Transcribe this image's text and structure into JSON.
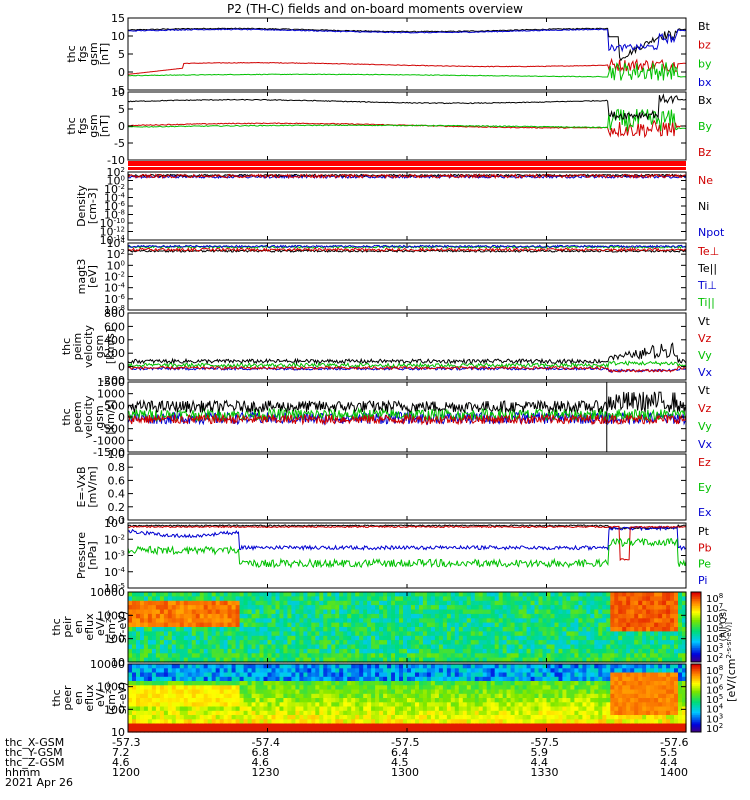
{
  "title": "P2 (TH-C) fields and on-board moments overview",
  "panels": [
    {
      "id": "fgs_bt",
      "ylabel": [
        "thc",
        "fgs",
        "gsm",
        "[nT]"
      ],
      "yticks": [
        "15",
        "10",
        "5",
        "0",
        "-5"
      ],
      "legend": [
        {
          "t": "Bt",
          "c": "#000000"
        },
        {
          "t": "bz",
          "c": "#d00000"
        },
        {
          "t": "by",
          "c": "#00c000"
        },
        {
          "t": "bx",
          "c": "#0000d0"
        }
      ]
    },
    {
      "id": "fgs_b",
      "ylabel": [
        "thc",
        "fgs",
        "gsm",
        "[nT]"
      ],
      "yticks": [
        "10",
        "5",
        "0",
        "-5",
        "-10"
      ],
      "legend": [
        {
          "t": "Bx",
          "c": "#000000"
        },
        {
          "t": "By",
          "c": "#00c000"
        },
        {
          "t": "Bz",
          "c": "#d00000"
        }
      ]
    },
    {
      "id": "density",
      "ylabel": [
        "Density",
        "[cm-3]"
      ],
      "yticks": [
        "10^2",
        "10^0",
        "10^-2",
        "10^-4",
        "10^-6",
        "10^-8",
        "10^-10",
        "10^-12",
        "10^-14"
      ],
      "legend": [
        {
          "t": "Ne",
          "c": "#d00000"
        },
        {
          "t": "Ni",
          "c": "#000000"
        },
        {
          "t": "Npot",
          "c": "#0000d0"
        }
      ]
    },
    {
      "id": "temp",
      "ylabel": [
        "magt3",
        "[eV]"
      ],
      "yticks": [
        "10^4",
        "10^2",
        "10^0",
        "10^-2",
        "10^-4",
        "10^-6",
        "10^-8"
      ],
      "legend": [
        {
          "t": "Te⊥",
          "c": "#d00000"
        },
        {
          "t": "Te||",
          "c": "#000000"
        },
        {
          "t": "Ti⊥",
          "c": "#0000d0"
        },
        {
          "t": "Ti||",
          "c": "#00c000"
        }
      ]
    },
    {
      "id": "peim",
      "ylabel": [
        "thc",
        "peim",
        "velocity",
        "gsm",
        "[km/s]"
      ],
      "yticks": [
        "800",
        "600",
        "400",
        "200",
        "0",
        "-200"
      ],
      "legend": [
        {
          "t": "Vt",
          "c": "#000000"
        },
        {
          "t": "Vz",
          "c": "#d00000"
        },
        {
          "t": "Vy",
          "c": "#00c000"
        },
        {
          "t": "Vx",
          "c": "#0000d0"
        }
      ]
    },
    {
      "id": "peem",
      "ylabel": [
        "thc",
        "peem",
        "velocity",
        "gsm",
        "[km/s]"
      ],
      "yticks": [
        "1500",
        "1000",
        "500",
        "0",
        "-500",
        "-1000",
        "-1500"
      ],
      "legend": [
        {
          "t": "Vt",
          "c": "#000000"
        },
        {
          "t": "Vz",
          "c": "#d00000"
        },
        {
          "t": "Vy",
          "c": "#00c000"
        },
        {
          "t": "Vx",
          "c": "#0000d0"
        }
      ]
    },
    {
      "id": "efield",
      "ylabel": [
        "E=-VxB",
        "[mV/m]"
      ],
      "yticks": [
        "1.0",
        "0.8",
        "0.6",
        "0.4",
        "0.2",
        "0.0"
      ],
      "legend": [
        {
          "t": "Ez",
          "c": "#d00000"
        },
        {
          "t": "Ey",
          "c": "#00c000"
        },
        {
          "t": "Ex",
          "c": "#0000d0"
        }
      ]
    },
    {
      "id": "pressure",
      "ylabel": [
        "Pressure",
        "[nPa]"
      ],
      "yticks": [
        "10^-1",
        "10^-2",
        "10^-3",
        "10^-4",
        "10^-5"
      ],
      "legend": [
        {
          "t": "Pt",
          "c": "#000000"
        },
        {
          "t": "Pb",
          "c": "#d00000"
        },
        {
          "t": "Pe",
          "c": "#00c000"
        },
        {
          "t": "Pi",
          "c": "#0000d0"
        }
      ]
    },
    {
      "id": "peir",
      "ylabel": [
        "thc",
        "peir",
        "en",
        "eflux",
        "eV/",
        "(cm^2-s-",
        "sr-eV)"
      ],
      "yticks": [
        "10000",
        "1000",
        "100",
        "10"
      ],
      "legend": []
    },
    {
      "id": "peer",
      "ylabel": [
        "thc",
        "peer",
        "en",
        "eflux",
        "eV/",
        "(cm^2-s-",
        "sr-eV)"
      ],
      "yticks": [
        "10000",
        "1000",
        "100",
        "10"
      ],
      "legend": []
    }
  ],
  "colorbar": {
    "label": "[eV/(cm^2-s-sr-eV)]",
    "label_small": "(All Qs)",
    "ticks_top": [
      "10^8",
      "10^7",
      "10^6",
      "10^5",
      "10^4",
      "10^3",
      "10^2"
    ],
    "ticks_bottom": [
      "10^8",
      "10^7",
      "10^6",
      "10^5",
      "10^4",
      "10^3",
      "10^2"
    ]
  },
  "footer": {
    "rows": [
      {
        "label": "thc_X-GSM",
        "values": [
          "-57.3",
          "-57.4",
          "-57.5",
          "-57.5",
          "-57.6"
        ]
      },
      {
        "label": "thc_Y-GSM",
        "values": [
          "7.2",
          "6.8",
          "6.4",
          "5.9",
          "5.5"
        ]
      },
      {
        "label": "thc_Z-GSM",
        "values": [
          "4.6",
          "4.6",
          "4.5",
          "4.4",
          "4.4"
        ]
      },
      {
        "label": "hhmm",
        "values": [
          "1200",
          "1230",
          "1300",
          "1330",
          "1400"
        ]
      }
    ],
    "date": "2021 Apr 26"
  },
  "chart_data": {
    "type": "line",
    "time_range": [
      "1200",
      "1400"
    ],
    "x_ticks": [
      "1200",
      "1230",
      "1300",
      "1330",
      "1400"
    ],
    "series_summary": {
      "Bt_nT": 12,
      "bz_nT": 1,
      "by_nT": -2,
      "bx_nT": -1
    }
  }
}
